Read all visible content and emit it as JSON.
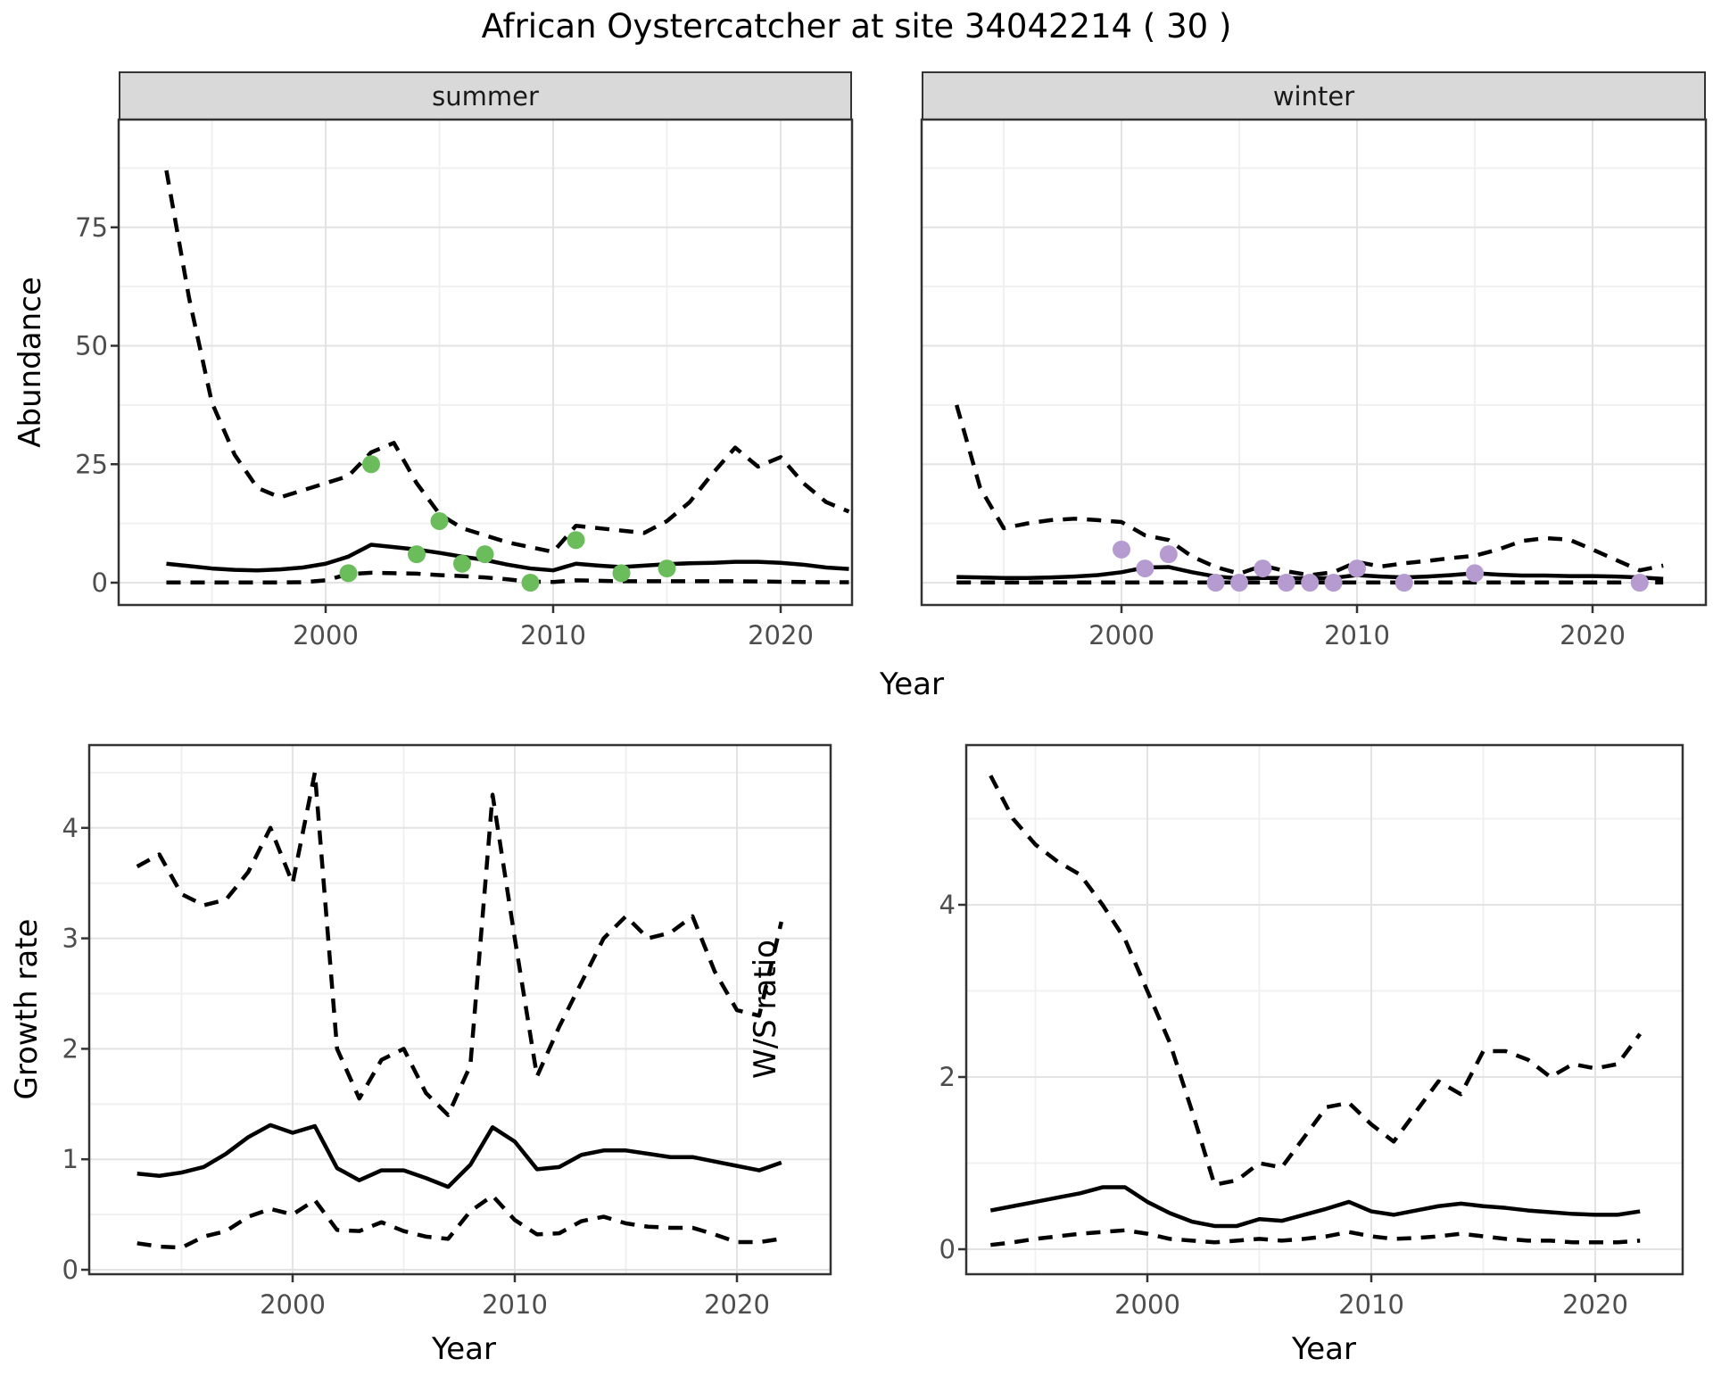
{
  "title": "African Oystercatcher at site 34042214 ( 30 )",
  "facets": [
    {
      "label": "summer"
    },
    {
      "label": "winter"
    }
  ],
  "axes": {
    "abundance_y": "Abundance",
    "top_x": "Year",
    "growth_y": "Growth rate",
    "growth_x": "Year",
    "ws_y": "W/S ratio",
    "ws_x": "Year"
  },
  "colors": {
    "summer_point": "#6abd5a",
    "winter_point": "#b59bd0",
    "line": "#000000",
    "strip_bg": "#d9d9d9",
    "grid_major": "#e3e3e3",
    "grid_minor": "#f0f0f0",
    "axis_text": "#4d4d4d",
    "panel_border": "#333333"
  },
  "chart_data": [
    {
      "panel": "abundance-summer",
      "type": "line",
      "facet": "summer",
      "title": "African Oystercatcher at site 34042214 ( 30 )",
      "xlabel": "Year",
      "ylabel": "Abundance",
      "xlim": [
        1991,
        2024
      ],
      "ylim": [
        -3,
        97
      ],
      "xticks": [
        2000,
        2010,
        2020
      ],
      "yticks": [
        0,
        25,
        50,
        75
      ],
      "grid": true,
      "legend_position": "none",
      "x": [
        1993,
        1994,
        1995,
        1996,
        1997,
        1998,
        1999,
        2000,
        2001,
        2002,
        2003,
        2004,
        2005,
        2006,
        2007,
        2008,
        2009,
        2010,
        2011,
        2012,
        2013,
        2014,
        2015,
        2016,
        2017,
        2018,
        2019,
        2020,
        2021,
        2022,
        2023
      ],
      "series": [
        {
          "name": "upper_ci",
          "style": "dashed",
          "values": [
            87,
            60,
            38,
            27,
            20,
            18,
            19.5,
            21,
            22.5,
            27.5,
            29.5,
            21,
            14.5,
            11.5,
            10,
            8.5,
            7.5,
            6.5,
            12,
            11.5,
            11,
            10.5,
            13,
            17,
            23,
            28.5,
            24.5,
            26.5,
            21,
            17,
            15
          ]
        },
        {
          "name": "mean",
          "style": "solid",
          "values": [
            4,
            3.5,
            3,
            2.7,
            2.6,
            2.8,
            3.2,
            4,
            5.5,
            8,
            7.5,
            7,
            6.3,
            5.5,
            4.8,
            3.8,
            3,
            2.6,
            4,
            3.6,
            3.3,
            3.6,
            3.9,
            4.1,
            4.2,
            4.4,
            4.4,
            4.2,
            3.8,
            3.2,
            2.9
          ]
        },
        {
          "name": "lower_ci",
          "style": "dashed",
          "values": [
            0.05,
            0.05,
            0.05,
            0.05,
            0.05,
            0.05,
            0.1,
            0.5,
            1.8,
            2.1,
            2,
            1.9,
            1.6,
            1.4,
            1.1,
            0.7,
            0.2,
            0.15,
            0.5,
            0.4,
            0.3,
            0.3,
            0.3,
            0.3,
            0.3,
            0.3,
            0.25,
            0.2,
            0.15,
            0.1,
            0.1
          ]
        }
      ],
      "points": {
        "name": "summer-observations",
        "color": "#6abd5a",
        "x": [
          2001,
          2002,
          2004,
          2005,
          2006,
          2007,
          2009,
          2011,
          2013,
          2015
        ],
        "y": [
          2,
          25,
          6,
          13,
          4,
          6,
          0,
          9,
          2,
          3
        ]
      }
    },
    {
      "panel": "abundance-winter",
      "type": "line",
      "facet": "winter",
      "xlabel": "Year",
      "ylabel": "Abundance",
      "xlim": [
        1991,
        2024
      ],
      "ylim": [
        -3,
        97
      ],
      "xticks": [
        2000,
        2010,
        2020
      ],
      "yticks": [
        0,
        25,
        50,
        75
      ],
      "grid": true,
      "legend_position": "none",
      "x": [
        1993,
        1994,
        1995,
        1996,
        1997,
        1998,
        1999,
        2000,
        2001,
        2002,
        2003,
        2004,
        2005,
        2006,
        2007,
        2008,
        2009,
        2010,
        2011,
        2012,
        2013,
        2014,
        2015,
        2016,
        2017,
        2018,
        2019,
        2020,
        2021,
        2022,
        2023
      ],
      "series": [
        {
          "name": "upper_ci",
          "style": "dashed",
          "values": [
            37.5,
            20,
            11.5,
            12.5,
            13.2,
            13.5,
            13.2,
            12.8,
            10,
            9,
            5.5,
            3.3,
            1.9,
            3.6,
            2.4,
            1.6,
            2.2,
            4.4,
            3.4,
            4.1,
            4.6,
            5.2,
            5.7,
            7,
            8.8,
            9.4,
            9.1,
            7,
            4.8,
            2.6,
            3.6
          ]
        },
        {
          "name": "mean",
          "style": "solid",
          "values": [
            1.2,
            1.1,
            1,
            1,
            1.1,
            1.3,
            1.6,
            2.2,
            3.2,
            3.3,
            2.2,
            1.3,
            0.9,
            1,
            1,
            0.9,
            1,
            1.6,
            1.3,
            1.1,
            1.3,
            1.6,
            2,
            1.7,
            1.5,
            1.5,
            1.4,
            1.4,
            1.3,
            1.1,
            0.8
          ]
        },
        {
          "name": "lower_ci",
          "style": "dashed",
          "values": [
            0.05,
            0.05,
            0.05,
            0.05,
            0.05,
            0.05,
            0.05,
            0.05,
            0.05,
            0.05,
            0.05,
            0.05,
            0.05,
            0.05,
            0.05,
            0.05,
            0.05,
            0.05,
            0.05,
            0.05,
            0.05,
            0.05,
            0.05,
            0.05,
            0.05,
            0.05,
            0.05,
            0.05,
            0.05,
            0.05,
            0.05
          ]
        }
      ],
      "points": {
        "name": "winter-observations",
        "color": "#b59bd0",
        "x": [
          2000,
          2001,
          2002,
          2004,
          2005,
          2006,
          2007,
          2008,
          2009,
          2010,
          2012,
          2015,
          2022
        ],
        "y": [
          7,
          3,
          6,
          0,
          0,
          3,
          0,
          0,
          0,
          3,
          0,
          2,
          0
        ]
      }
    },
    {
      "panel": "growth",
      "type": "line",
      "xlabel": "Year",
      "ylabel": "Growth rate",
      "xlim": [
        1991,
        2024
      ],
      "ylim": [
        0,
        4.8
      ],
      "xticks": [
        2000,
        2010,
        2020
      ],
      "yticks": [
        0,
        1,
        2,
        3,
        4
      ],
      "grid": true,
      "legend_position": "none",
      "x": [
        1993,
        1994,
        1995,
        1996,
        1997,
        1998,
        1999,
        2000,
        2001,
        2002,
        2003,
        2004,
        2005,
        2006,
        2007,
        2008,
        2009,
        2010,
        2011,
        2012,
        2013,
        2014,
        2015,
        2016,
        2017,
        2018,
        2019,
        2020,
        2021,
        2022
      ],
      "series": [
        {
          "name": "upper_ci",
          "style": "dashed",
          "values": [
            3.65,
            3.76,
            3.4,
            3.3,
            3.35,
            3.6,
            4,
            3.5,
            4.5,
            2,
            1.55,
            1.9,
            2,
            1.6,
            1.4,
            1.85,
            4.3,
            3,
            1.75,
            2.2,
            2.6,
            3,
            3.2,
            3,
            3.05,
            3.2,
            2.7,
            2.35,
            2.3,
            3.15
          ]
        },
        {
          "name": "mean",
          "style": "solid",
          "values": [
            0.87,
            0.85,
            0.88,
            0.93,
            1.05,
            1.2,
            1.31,
            1.24,
            1.3,
            0.92,
            0.81,
            0.9,
            0.9,
            0.83,
            0.75,
            0.95,
            1.29,
            1.16,
            0.91,
            0.93,
            1.04,
            1.08,
            1.08,
            1.05,
            1.02,
            1.02,
            0.98,
            0.94,
            0.9,
            0.97
          ]
        },
        {
          "name": "lower_ci",
          "style": "dashed",
          "values": [
            0.24,
            0.21,
            0.2,
            0.3,
            0.35,
            0.48,
            0.55,
            0.5,
            0.63,
            0.36,
            0.35,
            0.43,
            0.35,
            0.3,
            0.28,
            0.53,
            0.67,
            0.45,
            0.32,
            0.33,
            0.44,
            0.48,
            0.42,
            0.39,
            0.38,
            0.38,
            0.32,
            0.25,
            0.25,
            0.28
          ]
        }
      ]
    },
    {
      "panel": "ws",
      "type": "line",
      "xlabel": "Year",
      "ylabel": "W/S ratio",
      "xlim": [
        1991,
        2024
      ],
      "ylim": [
        -0.3,
        5.9
      ],
      "xticks": [
        2000,
        2010,
        2020
      ],
      "yticks": [
        0,
        2,
        4
      ],
      "grid": true,
      "legend_position": "none",
      "x": [
        1993,
        1994,
        1995,
        1996,
        1997,
        1998,
        1999,
        2000,
        2001,
        2002,
        2003,
        2004,
        2005,
        2006,
        2007,
        2008,
        2009,
        2010,
        2011,
        2012,
        2013,
        2014,
        2015,
        2016,
        2017,
        2018,
        2019,
        2020,
        2021,
        2022
      ],
      "series": [
        {
          "name": "upper_ci",
          "style": "dashed",
          "values": [
            5.5,
            5,
            4.7,
            4.5,
            4.35,
            4,
            3.6,
            3,
            2.4,
            1.6,
            0.75,
            0.8,
            1,
            0.95,
            1.3,
            1.65,
            1.7,
            1.45,
            1.25,
            1.6,
            1.95,
            1.8,
            2.3,
            2.3,
            2.2,
            2,
            2.15,
            2.1,
            2.15,
            2.5
          ]
        },
        {
          "name": "mean",
          "style": "solid",
          "values": [
            0.45,
            0.5,
            0.55,
            0.6,
            0.65,
            0.72,
            0.72,
            0.55,
            0.42,
            0.32,
            0.27,
            0.27,
            0.35,
            0.33,
            0.4,
            0.47,
            0.55,
            0.44,
            0.4,
            0.45,
            0.5,
            0.53,
            0.5,
            0.48,
            0.45,
            0.43,
            0.41,
            0.4,
            0.4,
            0.44
          ]
        },
        {
          "name": "lower_ci",
          "style": "dashed",
          "values": [
            0.05,
            0.08,
            0.12,
            0.15,
            0.18,
            0.2,
            0.22,
            0.18,
            0.12,
            0.1,
            0.08,
            0.1,
            0.12,
            0.1,
            0.12,
            0.15,
            0.2,
            0.15,
            0.12,
            0.13,
            0.15,
            0.18,
            0.15,
            0.12,
            0.1,
            0.1,
            0.08,
            0.08,
            0.08,
            0.1
          ]
        }
      ]
    }
  ]
}
